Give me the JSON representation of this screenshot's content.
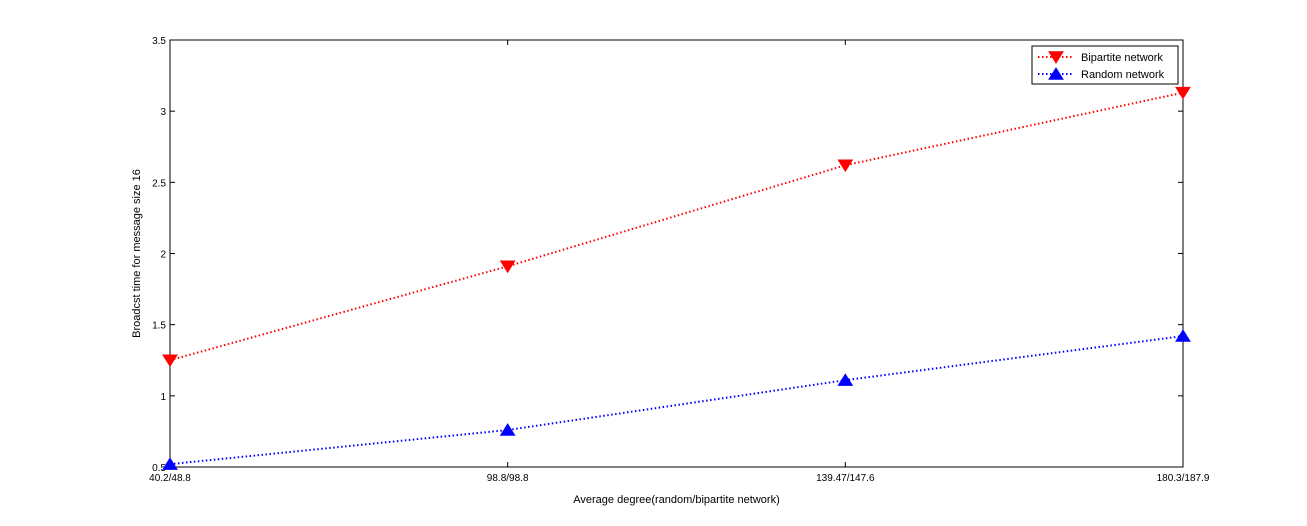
{
  "chart_data": {
    "type": "line",
    "categories": [
      "40.2/48.8",
      "98.8/98.8",
      "139.47/147.6",
      "180.3/187.9"
    ],
    "series": [
      {
        "name": "Bipartite network",
        "values": [
          1.25,
          1.91,
          2.62,
          3.13
        ],
        "color": "#ff0000",
        "marker": "triangle-down",
        "line_style": "dotted"
      },
      {
        "name": "Random network",
        "values": [
          0.52,
          0.76,
          1.11,
          1.42
        ],
        "color": "#0000ff",
        "marker": "triangle-up",
        "line_style": "dotted"
      }
    ],
    "xlabel": "Average degree(random/bipartite network)",
    "ylabel": "Broadcst time for message size 16",
    "ylim": [
      0.5,
      3.5
    ],
    "yticks": [
      "0.5",
      "1",
      "1.5",
      "2",
      "2.5",
      "3",
      "3.5"
    ],
    "grid": false,
    "legend_position": "top-right"
  }
}
